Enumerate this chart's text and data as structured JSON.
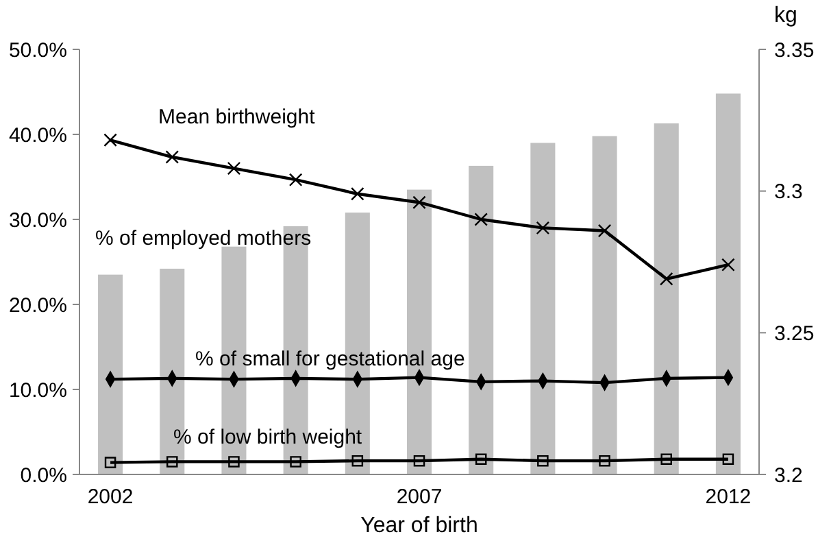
{
  "chart_data": {
    "type": "line",
    "xlabel": "Year of birth",
    "y2label": "kg",
    "categories": [
      "2002",
      null,
      null,
      null,
      null,
      "2007",
      null,
      null,
      null,
      null,
      "2012"
    ],
    "ylim": [
      0,
      50
    ],
    "yticks": [
      {
        "value": 0,
        "label": "0.0%"
      },
      {
        "value": 10,
        "label": "10.0%"
      },
      {
        "value": 20,
        "label": "20.0%"
      },
      {
        "value": 30,
        "label": "30.0%"
      },
      {
        "value": 40,
        "label": "40.0%"
      },
      {
        "value": 50,
        "label": "50.0%"
      }
    ],
    "y2lim": [
      3.2,
      3.35
    ],
    "y2ticks": [
      3.2,
      3.25,
      3.3,
      3.35
    ],
    "series": [
      {
        "name": "% of employed mothers",
        "type": "bar",
        "color": "#c0c0c0",
        "values": [
          23.5,
          24.2,
          26.8,
          29.2,
          30.8,
          33.5,
          36.3,
          39.0,
          39.8,
          41.3,
          44.8
        ]
      },
      {
        "name": "Mean birthweight",
        "axis": "y2",
        "color": "#000000",
        "marker": "cross",
        "values": [
          3.318,
          3.312,
          3.308,
          3.304,
          3.299,
          3.296,
          3.29,
          3.287,
          3.286,
          3.269,
          3.274
        ]
      },
      {
        "name": "% of small for gestational age",
        "color": "#000000",
        "marker": "diamond",
        "values": [
          11.2,
          11.3,
          11.2,
          11.3,
          11.2,
          11.4,
          10.9,
          11.0,
          10.8,
          11.3,
          11.4
        ]
      },
      {
        "name": "% of low birth weight",
        "color": "#000000",
        "marker": "square",
        "values": [
          1.4,
          1.5,
          1.5,
          1.5,
          1.6,
          1.6,
          1.8,
          1.6,
          1.6,
          1.8,
          1.8
        ]
      }
    ]
  }
}
